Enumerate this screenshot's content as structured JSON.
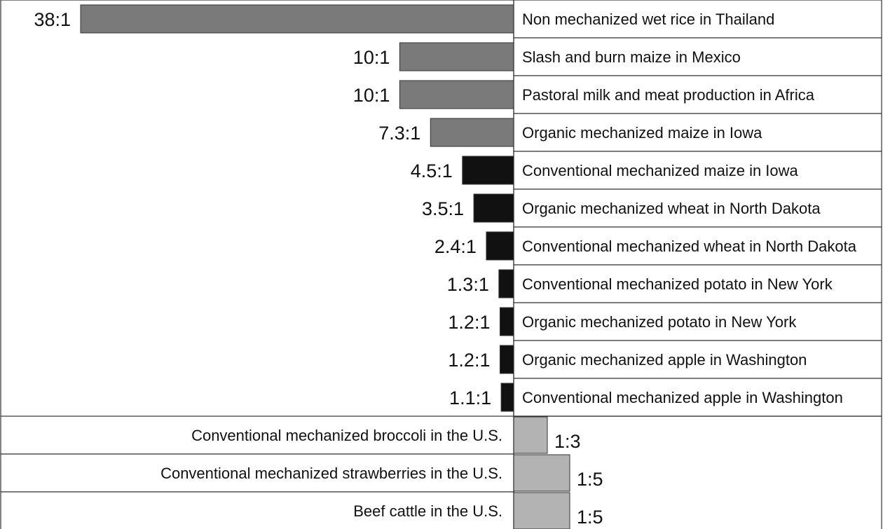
{
  "chart_data": {
    "type": "bar",
    "orientation": "horizontal-diverging",
    "value_unit": "energy output : energy input ratio",
    "rows": [
      {
        "category": "Non mechanized wet rice in Thailand",
        "ratio_label": "38:1",
        "value": 38,
        "direction": "left",
        "color": "#7a7a7a"
      },
      {
        "category": "Slash and burn maize in Mexico",
        "ratio_label": "10:1",
        "value": 10,
        "direction": "left",
        "color": "#7a7a7a"
      },
      {
        "category": "Pastoral milk and meat production in Africa",
        "ratio_label": "10:1",
        "value": 10,
        "direction": "left",
        "color": "#7a7a7a"
      },
      {
        "category": "Organic mechanized maize in Iowa",
        "ratio_label": "7.3:1",
        "value": 7.3,
        "direction": "left",
        "color": "#7a7a7a"
      },
      {
        "category": "Conventional mechanized maize in Iowa",
        "ratio_label": "4.5:1",
        "value": 4.5,
        "direction": "left",
        "color": "#111111"
      },
      {
        "category": "Organic mechanized wheat in North Dakota",
        "ratio_label": "3.5:1",
        "value": 3.5,
        "direction": "left",
        "color": "#111111"
      },
      {
        "category": "Conventional mechanized wheat in North Dakota",
        "ratio_label": "2.4:1",
        "value": 2.4,
        "direction": "left",
        "color": "#111111"
      },
      {
        "category": "Conventional mechanized potato in New York",
        "ratio_label": "1.3:1",
        "value": 1.3,
        "direction": "left",
        "color": "#111111"
      },
      {
        "category": "Organic mechanized potato in New York",
        "ratio_label": "1.2:1",
        "value": 1.2,
        "direction": "left",
        "color": "#111111"
      },
      {
        "category": "Organic mechanized apple in Washington",
        "ratio_label": "1.2:1",
        "value": 1.2,
        "direction": "left",
        "color": "#111111"
      },
      {
        "category": "Conventional mechanized apple in Washington",
        "ratio_label": "1.1:1",
        "value": 1.1,
        "direction": "left",
        "color": "#111111"
      },
      {
        "category": "Conventional mechanized broccoli in the U.S.",
        "ratio_label": "1:3",
        "value": 3,
        "direction": "right",
        "color": "#b3b3b3"
      },
      {
        "category": "Conventional mechanized strawberries in the U.S.",
        "ratio_label": "1:5",
        "value": 5,
        "direction": "right",
        "color": "#b3b3b3"
      },
      {
        "category": "Beef cattle in the U.S.",
        "ratio_label": "1:5",
        "value": 5,
        "direction": "right",
        "color": "#b3b3b3"
      }
    ],
    "title": "",
    "xlabel": "",
    "ylabel": "",
    "grid": false
  }
}
